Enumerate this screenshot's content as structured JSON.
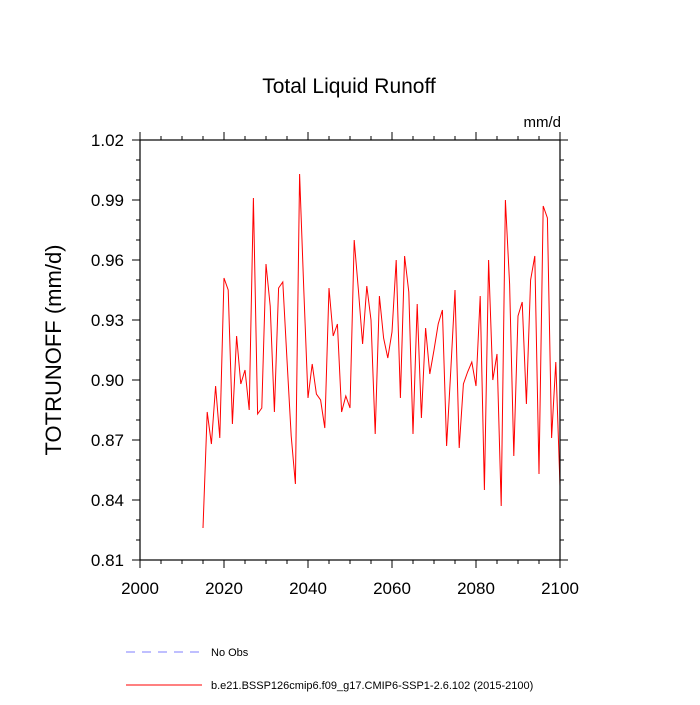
{
  "chart_data": {
    "type": "line",
    "title": "Total Liquid Runoff",
    "units": "mm/d",
    "xlabel": "",
    "ylabel": "TOTRUNOFF  (mm/d)",
    "xlim": [
      2000,
      2100
    ],
    "ylim": [
      0.81,
      1.02
    ],
    "x_ticks": [
      2000,
      2020,
      2040,
      2060,
      2080,
      2100
    ],
    "y_ticks": [
      0.81,
      0.84,
      0.87,
      0.9,
      0.93,
      0.96,
      0.99,
      1.02
    ],
    "x_tick_labels": [
      "2000",
      "2020",
      "2040",
      "2060",
      "2080",
      "2100"
    ],
    "y_tick_labels": [
      "0.81",
      "0.84",
      "0.87",
      "0.90",
      "0.93",
      "0.96",
      "0.99",
      "1.02"
    ],
    "grid": false,
    "legend_position": "bottom",
    "legend": [
      {
        "label": "No Obs",
        "color": "#7f7fff",
        "style": "dashed"
      },
      {
        "label": "b.e21.BSSP126cmip6.f09_g17.CMIP6-SSP1-2.6.102 (2015-2100)",
        "color": "#ff0000",
        "style": "solid"
      }
    ],
    "series": [
      {
        "color": "#ff0000",
        "x": [
          2015,
          2016,
          2017,
          2018,
          2019,
          2020,
          2021,
          2022,
          2023,
          2024,
          2025,
          2026,
          2027,
          2028,
          2029,
          2030,
          2031,
          2032,
          2033,
          2034,
          2035,
          2036,
          2037,
          2038,
          2039,
          2040,
          2041,
          2042,
          2043,
          2044,
          2045,
          2046,
          2047,
          2048,
          2049,
          2050,
          2051,
          2052,
          2053,
          2054,
          2055,
          2056,
          2057,
          2058,
          2059,
          2060,
          2061,
          2062,
          2063,
          2064,
          2065,
          2066,
          2067,
          2068,
          2069,
          2070,
          2071,
          2072,
          2073,
          2074,
          2075,
          2076,
          2077,
          2078,
          2079,
          2080,
          2081,
          2082,
          2083,
          2084,
          2085,
          2086,
          2087,
          2088,
          2089,
          2090,
          2091,
          2092,
          2093,
          2094,
          2095,
          2096,
          2097,
          2098,
          2099,
          2100
        ],
        "values": [
          0.826,
          0.884,
          0.868,
          0.897,
          0.871,
          0.951,
          0.945,
          0.878,
          0.922,
          0.898,
          0.905,
          0.885,
          0.991,
          0.883,
          0.886,
          0.958,
          0.937,
          0.884,
          0.946,
          0.949,
          0.91,
          0.872,
          0.848,
          1.003,
          0.945,
          0.891,
          0.908,
          0.893,
          0.89,
          0.876,
          0.946,
          0.922,
          0.928,
          0.884,
          0.892,
          0.886,
          0.97,
          0.945,
          0.918,
          0.947,
          0.93,
          0.873,
          0.942,
          0.921,
          0.911,
          0.924,
          0.96,
          0.891,
          0.962,
          0.944,
          0.873,
          0.938,
          0.881,
          0.926,
          0.903,
          0.915,
          0.928,
          0.935,
          0.867,
          0.905,
          0.945,
          0.866,
          0.898,
          0.904,
          0.909,
          0.897,
          0.942,
          0.845,
          0.96,
          0.9,
          0.913,
          0.837,
          0.99,
          0.948,
          0.862,
          0.932,
          0.939,
          0.888,
          0.95,
          0.962,
          0.853,
          0.987,
          0.981,
          0.871,
          0.909,
          0.847
        ]
      }
    ]
  }
}
